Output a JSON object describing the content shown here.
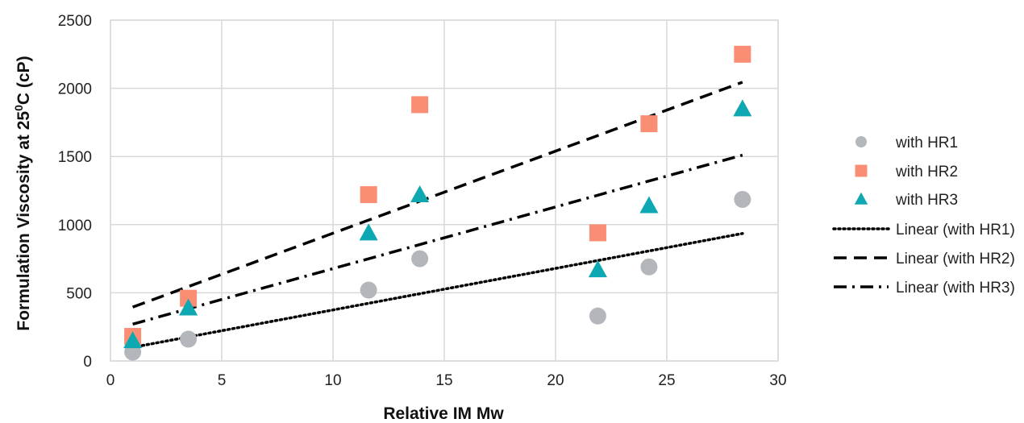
{
  "chart_data": {
    "type": "scatter",
    "title": "",
    "xlabel": "Relative IM Mw",
    "ylabel": "Formulation Viscosity at 25",
    "ylabel_sup": "0",
    "ylabel_suffix": "C (cP)",
    "xlim": [
      0,
      30
    ],
    "ylim": [
      0,
      2500
    ],
    "x_ticks": [
      0,
      5,
      10,
      15,
      20,
      25,
      30
    ],
    "y_ticks": [
      0,
      500,
      1000,
      1500,
      2000,
      2500
    ],
    "grid": true,
    "legend_position": "right",
    "series": [
      {
        "name": "with HR1",
        "marker": "circle",
        "color": "#B3B7BC",
        "points": [
          [
            1,
            65
          ],
          [
            3.5,
            160
          ],
          [
            11.6,
            520
          ],
          [
            13.9,
            750
          ],
          [
            21.9,
            330
          ],
          [
            24.2,
            690
          ],
          [
            28.4,
            1185
          ]
        ]
      },
      {
        "name": "with HR2",
        "marker": "square",
        "color": "#F98E75",
        "points": [
          [
            1,
            180
          ],
          [
            3.5,
            460
          ],
          [
            11.6,
            1220
          ],
          [
            13.9,
            1880
          ],
          [
            21.9,
            940
          ],
          [
            24.2,
            1740
          ],
          [
            28.4,
            2250
          ]
        ]
      },
      {
        "name": "with HR3",
        "marker": "triangle",
        "color": "#0EA8B3",
        "points": [
          [
            1,
            150
          ],
          [
            3.5,
            390
          ],
          [
            11.6,
            940
          ],
          [
            13.9,
            1220
          ],
          [
            21.9,
            670
          ],
          [
            24.2,
            1140
          ],
          [
            28.4,
            1850
          ]
        ]
      }
    ],
    "trendlines": [
      {
        "name": "Linear (with HR1)",
        "dash": "dotted",
        "color": "#000000",
        "x": [
          1,
          28.4
        ],
        "y": [
          100,
          935
        ]
      },
      {
        "name": "Linear (with HR2)",
        "dash": "dashed",
        "color": "#000000",
        "x": [
          1,
          28.4
        ],
        "y": [
          395,
          2045
        ]
      },
      {
        "name": "Linear (with HR3)",
        "dash": "dashdot",
        "color": "#000000",
        "x": [
          1,
          28.4
        ],
        "y": [
          270,
          1510
        ]
      }
    ]
  }
}
